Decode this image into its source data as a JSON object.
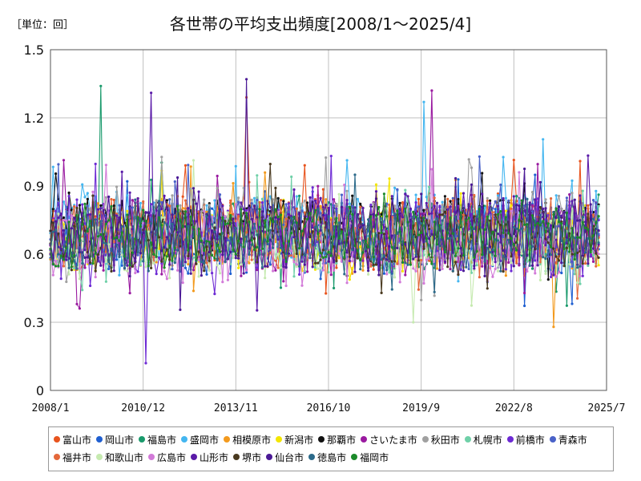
{
  "unit_label": "［単位：回］",
  "title": "各世帯の平均支出頻度[2008/1～2025/4]",
  "chart_data": {
    "type": "line",
    "title": "各世帯の平均支出頻度[2008/1～2025/4]",
    "unit": "［単位：回］",
    "x_ticks": [
      "2008/1",
      "2010/12",
      "2013/11",
      "2016/10",
      "2019/9",
      "2022/8",
      "2025/7"
    ],
    "y_ticks": [
      "0",
      "0.3",
      "0.6",
      "0.9",
      "1.2",
      "1.5"
    ],
    "ylim": [
      0,
      1.5
    ],
    "x_range": [
      "2008/1",
      "2025/7"
    ],
    "grid": true,
    "legend_position": "bottom",
    "note": "Monthly series (2008/1–2025/4, 208 points each) fluctuating roughly between 0.4 and 1.0; notable extremes: 福島市 peak ≈1.34 (2009/8), 前橋市 low ≈0.12 (2011/1), 仙台市 peak ≈1.37 (2014/3), 相模原市 low ≈0.28 (2023/11).",
    "series": [
      {
        "name": "富山市",
        "color": "#e8541e",
        "base": 0.7,
        "amp": 0.14,
        "seed": 11
      },
      {
        "name": "岡山市",
        "color": "#1f5fd1",
        "base": 0.66,
        "amp": 0.13,
        "seed": 23
      },
      {
        "name": "福島市",
        "color": "#1a9a6c",
        "base": 0.7,
        "amp": 0.14,
        "seed": 37
      },
      {
        "name": "盛岡市",
        "color": "#44b6f0",
        "base": 0.72,
        "amp": 0.14,
        "seed": 41
      },
      {
        "name": "相模原市",
        "color": "#f39a1e",
        "base": 0.68,
        "amp": 0.14,
        "seed": 53
      },
      {
        "name": "新潟市",
        "color": "#f4e600",
        "base": 0.67,
        "amp": 0.12,
        "seed": 67
      },
      {
        "name": "那覇市",
        "color": "#111111",
        "base": 0.74,
        "amp": 0.11,
        "seed": 71
      },
      {
        "name": "さいたま市",
        "color": "#9a1aa0",
        "base": 0.68,
        "amp": 0.15,
        "seed": 83
      },
      {
        "name": "秋田市",
        "color": "#a0a0a0",
        "base": 0.72,
        "amp": 0.14,
        "seed": 97
      },
      {
        "name": "札幌市",
        "color": "#6fd0a8",
        "base": 0.66,
        "amp": 0.13,
        "seed": 101
      },
      {
        "name": "前橋市",
        "color": "#6d2ad4",
        "base": 0.68,
        "amp": 0.15,
        "seed": 113
      },
      {
        "name": "青森市",
        "color": "#4a62c8",
        "base": 0.7,
        "amp": 0.14,
        "seed": 127
      },
      {
        "name": "福井市",
        "color": "#e4683a",
        "base": 0.69,
        "amp": 0.14,
        "seed": 131
      },
      {
        "name": "和歌山市",
        "color": "#c6eab0",
        "base": 0.64,
        "amp": 0.13,
        "seed": 149
      },
      {
        "name": "広島市",
        "color": "#d27ad8",
        "base": 0.64,
        "amp": 0.14,
        "seed": 151
      },
      {
        "name": "山形市",
        "color": "#5a1aa8",
        "base": 0.7,
        "amp": 0.15,
        "seed": 163
      },
      {
        "name": "堺市",
        "color": "#4a3a20",
        "base": 0.66,
        "amp": 0.12,
        "seed": 173
      },
      {
        "name": "仙台市",
        "color": "#4b1a96",
        "base": 0.68,
        "amp": 0.14,
        "seed": 181
      },
      {
        "name": "徳島市",
        "color": "#2c6a8a",
        "base": 0.66,
        "amp": 0.12,
        "seed": 191
      },
      {
        "name": "福岡市",
        "color": "#1b8a2a",
        "base": 0.68,
        "amp": 0.12,
        "seed": 199
      }
    ],
    "highlights": [
      {
        "series": "福島市",
        "date": "2009/8",
        "value": 1.34
      },
      {
        "series": "前橋市",
        "date": "2011/1",
        "value": 0.12
      },
      {
        "series": "仙台市",
        "date": "2014/3",
        "value": 1.37
      },
      {
        "series": "富山市",
        "date": "2014/3",
        "value": 1.29
      },
      {
        "series": "山形市",
        "date": "2011/3",
        "value": 1.31
      },
      {
        "series": "相模原市",
        "date": "2023/11",
        "value": 0.28
      },
      {
        "series": "盛岡市",
        "date": "2019/10",
        "value": 1.27
      },
      {
        "series": "さいたま市",
        "date": "2020/1",
        "value": 1.32
      },
      {
        "series": "和歌山市",
        "date": "2019/6",
        "value": 0.3
      }
    ]
  }
}
